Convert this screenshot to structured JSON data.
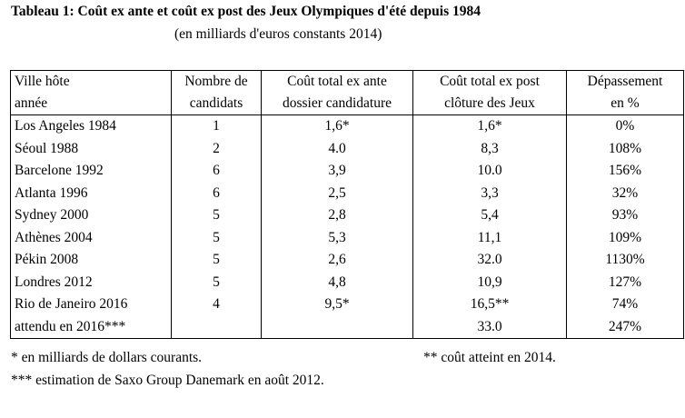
{
  "title": "Tableau 1: Coût ex ante et coût ex post des Jeux Olympiques d'été depuis 1984",
  "subtitle": "(en milliards d'euros constants 2014)",
  "headers": {
    "row1": [
      "Ville hôte",
      "Nombre de",
      "Coût total ex ante",
      "Coût total ex post",
      "Dépassement"
    ],
    "row2": [
      "année",
      "candidats",
      "dossier candidature",
      "clôture des Jeux",
      "en %"
    ]
  },
  "rows": [
    {
      "city": "Los Angeles 1984",
      "candidates": "1",
      "ex_ante": "1,6*",
      "ex_post": "1,6*",
      "overrun": "0%"
    },
    {
      "city": "Séoul 1988",
      "candidates": "2",
      "ex_ante": "4.0",
      "ex_post": "8,3",
      "overrun": "108%"
    },
    {
      "city": "Barcelone 1992",
      "candidates": "6",
      "ex_ante": "3,9",
      "ex_post": "10.0",
      "overrun": "156%"
    },
    {
      "city": "Atlanta 1996",
      "candidates": "6",
      "ex_ante": "2,5",
      "ex_post": "3,3",
      "overrun": "32%"
    },
    {
      "city": "Sydney 2000",
      "candidates": "5",
      "ex_ante": "2,8",
      "ex_post": "5,4",
      "overrun": "93%"
    },
    {
      "city": "Athènes 2004",
      "candidates": "5",
      "ex_ante": "5,3",
      "ex_post": "11,1",
      "overrun": "109%"
    },
    {
      "city": "Pékin 2008",
      "candidates": "5",
      "ex_ante": "2,6",
      "ex_post": "32.0",
      "overrun": "1130%"
    },
    {
      "city": "Londres 2012",
      "candidates": "5",
      "ex_ante": "4,8",
      "ex_post": "10,9",
      "overrun": "127%"
    },
    {
      "city": "Rio de Janeiro 2016",
      "candidates": "4",
      "ex_ante": "9,5*",
      "ex_post": "16,5**",
      "overrun": "74%"
    },
    {
      "city": "attendu en 2016***",
      "candidates": "",
      "ex_ante": "",
      "ex_post": "33.0",
      "overrun": "247%"
    }
  ],
  "notes": {
    "note1": "* en milliards de dollars courants.",
    "note2": "** coût atteint en 2014.",
    "note3": "*** estimation de Saxo Group Danemark en août 2012."
  }
}
